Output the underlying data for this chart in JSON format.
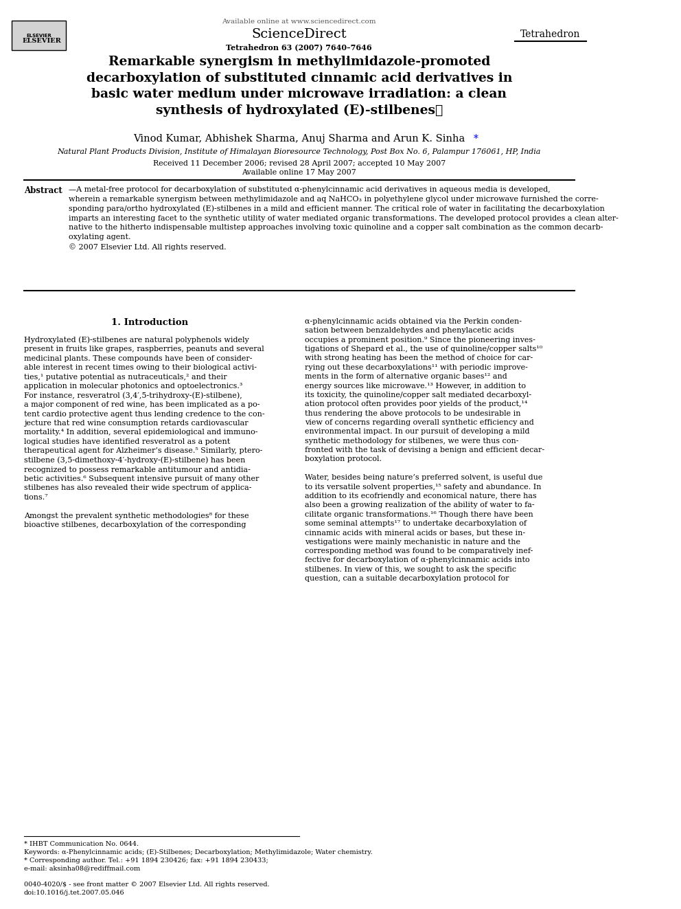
{
  "bg_color": "#ffffff",
  "page_width": 9.92,
  "page_height": 13.23,
  "header": {
    "available_online": "Available online at www.sciencedirect.com",
    "sciencedirect": "ScienceDirect",
    "journal_info": "Tetrahedron 63 (2007) 7640–7646",
    "journal_name": "Tetrahedron",
    "elsevier": "ELSEVIER"
  },
  "title": "Remarkable synergism in methylimidazole-promoted\ndecarboxylation of substituted cinnamic acid derivatives in\nbasic water medium under microwave irradiation: a clean\nsynthesis of hydroxylated (E)-stilbenes⋆",
  "authors": "Vinod Kumar, Abhishek Sharma, Anuj Sharma and Arun K. Sinha*",
  "affiliation": "Natural Plant Products Division, Institute of Himalayan Bioresource Technology, Post Box No. 6, Palampur 176061, HP, India",
  "received": "Received 11 December 2006; revised 28 April 2007; accepted 10 May 2007",
  "available": "Available online 17 May 2007",
  "abstract_label": "Abstract",
  "abstract_text": "—A metal-free protocol for decarboxylation of substituted α-phenylcinnamic acid derivatives in aqueous media is developed, wherein a remarkable synergism between methylimidazole and aq NaHCO₃ in polyethylene glycol under microwave furnished the corre-sponding para/ortho hydroxylated (E)-stilbenes in a mild and efficient manner. The critical role of water in facilitating the decarboxylation imparts an interesting facet to the synthetic utility of water mediated organic transformations. The developed protocol provides a clean alter-native to the hitherto indispensable multistep approaches involving toxic quinoline and a copper salt combination as the common decarb-oxylating agent.\n© 2007 Elsevier Ltd. All rights reserved.",
  "section1_title": "1. Introduction",
  "col1_text": "Hydroxylated (E)-stilbenes are natural polyphenols widely present in fruits like grapes, raspberries, peanuts and several medicinal plants. These compounds have been of considerable interest in recent times owing to their biological activities,¹ putative potential as nutraceuticals,² and their application in molecular photonics and optoelectronics.³ For instance, resveratrol (3,4′,5-trihydroxy-(E)-stilbene), a major component of red wine, has been implicated as a potent cardio protective agent thus lending credence to the conjecture that red wine consumption retards cardiovascular mortality.⁴ In addition, several epidemiological and immuno-logical studies have identified resveratrol as a potent therapeutical agent for Alzheimer’s disease.⁵ Similarly, ptero-stilbene (3,5-dimethoxy-4′-hydroxy-(E)-stilbene) has been recognized to possess remarkable antitumour and antidiabetic activities.⁶ Subsequent intensive pursuit of many other stilbenes has also revealed their wide spectrum of applications.⁷\n\nAmongst the prevalent synthetic methodologies⁸ for these bioactive stilbenes, decarboxylation of the corresponding",
  "col2_text": "α-phenylcinnamic acids obtained via the Perkin condensation between benzaldehydes and phenylacetic acids occupies a prominent position.⁹ Since the pioneering investigations of Shepard et al., the use of quinoline/copper salts¹⁰ with strong heating has been the method of choice for carrying out these decarboxylations¹¹ with periodic improvements in the form of alternative organic bases¹² and energy sources like microwave.¹³ However, in addition to its toxicity, the quinoline/copper salt mediated decarboxylation protocol often provides poor yields of the product,¹⁴ thus rendering the above protocols to be undesirable in view of concerns regarding overall synthetic efficiency and environmental impact. In our pursuit of developing a mild synthetic methodology for stilbenes, we were thus confronted with the task of devising a benign and efficient decarboxylation protocol.\n\nWater, besides being nature’s preferred solvent, is useful due to its versatile solvent properties,¹⁵ safety and abundance. In addition to its ecofriendly and economical nature, there has also been a growing realization of the ability of water to facilitate organic transformations.¹⁶ Though there have been some seminal attempts¹⁷ to undertake decarboxylation of cinnamic acids with mineral acids or bases, but these investigations were mainly mechanistic in nature and the corresponding method was found to be comparatively ineffective for decarboxylation of α-phenylcinnamic acids into stilbenes. In view of this, we sought to ask the specific question, can a suitable decarboxylation protocol for",
  "footer_left": "* IHBT Communication No. 0644.\nKeywords: α-Phenylcinnamic acids; (E)-Stilbenes; Decarboxylation; Methylimidazole; Water chemistry.\n* Corresponding author. Tel.: +91 1894 230426; fax: +91 1894 230433;\ne-mail: aksinha08@rediffmail.com",
  "footer_right": "0040-4020/$ - see front matter © 2007 Elsevier Ltd. All rights reserved.\ndoi:10.1016/j.tet.2007.05.046"
}
